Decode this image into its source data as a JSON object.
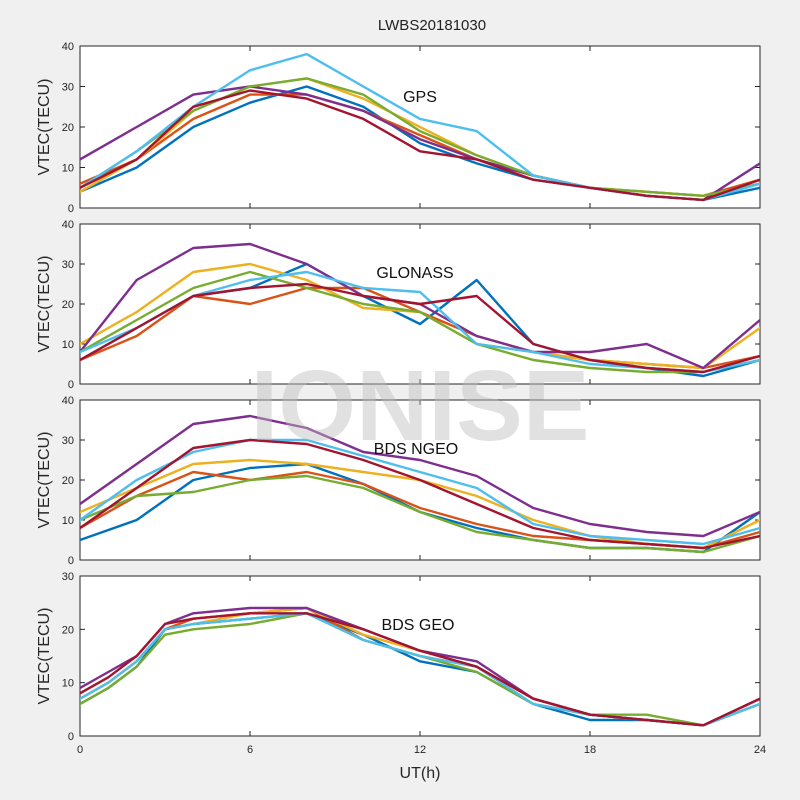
{
  "figure_title": "LWBS20181030",
  "watermark": "IONISE",
  "x_label": "UT(h)",
  "colors": [
    "#0072BD",
    "#D95319",
    "#EDB120",
    "#7E2F8E",
    "#77AC30",
    "#4DBEEE",
    "#A2142F"
  ],
  "chart_data": [
    {
      "type": "line",
      "label": "GPS",
      "ylabel": "VTEC(TECU)",
      "xlim": [
        0,
        24
      ],
      "ylim": [
        0,
        40
      ],
      "xticks": [
        0,
        6,
        12,
        18,
        24
      ],
      "yticks": [
        0,
        10,
        20,
        30,
        40
      ],
      "series": [
        {
          "x": [
            0,
            2,
            4,
            6,
            8,
            10,
            12,
            14,
            16,
            18,
            20,
            22,
            24
          ],
          "y": [
            4,
            10,
            20,
            26,
            30,
            25,
            16,
            11,
            7,
            5,
            3,
            2,
            5
          ]
        },
        {
          "x": [
            0,
            2,
            4,
            6,
            8,
            10,
            12,
            14,
            16,
            18,
            20,
            22,
            24
          ],
          "y": [
            6,
            12,
            22,
            28,
            28,
            24,
            18,
            12,
            8,
            5,
            4,
            3,
            7
          ]
        },
        {
          "x": [
            0,
            2,
            4,
            6,
            8,
            10,
            12,
            14,
            16,
            18,
            20,
            22,
            24
          ],
          "y": [
            4,
            12,
            24,
            30,
            32,
            27,
            20,
            13,
            8,
            5,
            4,
            3,
            6
          ]
        },
        {
          "x": [
            0,
            2,
            4,
            6,
            8,
            10,
            12,
            14,
            16,
            18,
            20,
            22,
            24
          ],
          "y": [
            12,
            20,
            28,
            30,
            28,
            24,
            17,
            12,
            8,
            5,
            3,
            2,
            11
          ]
        },
        {
          "x": [
            0,
            2,
            4,
            6,
            8,
            10,
            12,
            14,
            16,
            18,
            20,
            22,
            24
          ],
          "y": [
            5,
            14,
            24,
            30,
            32,
            28,
            19,
            13,
            8,
            5,
            4,
            3,
            6
          ]
        },
        {
          "x": [
            0,
            2,
            4,
            6,
            8,
            10,
            12,
            14,
            16,
            18,
            20,
            22,
            24
          ],
          "y": [
            5,
            14,
            25,
            34,
            38,
            30,
            22,
            19,
            8,
            5,
            3,
            2,
            6
          ]
        },
        {
          "x": [
            0,
            2,
            4,
            6,
            8,
            10,
            12,
            14,
            16,
            18,
            20,
            22,
            24
          ],
          "y": [
            5,
            12,
            25,
            29,
            27,
            22,
            14,
            12,
            7,
            5,
            3,
            2,
            7
          ]
        }
      ]
    },
    {
      "type": "line",
      "label": "GLONASS",
      "ylabel": "VTEC(TECU)",
      "xlim": [
        0,
        24
      ],
      "ylim": [
        0,
        40
      ],
      "xticks": [
        0,
        6,
        12,
        18,
        24
      ],
      "yticks": [
        0,
        10,
        20,
        30,
        40
      ],
      "series": [
        {
          "x": [
            0,
            2,
            4,
            6,
            8,
            10,
            12,
            14,
            16,
            18,
            20,
            22,
            24
          ],
          "y": [
            6,
            14,
            22,
            24,
            30,
            22,
            15,
            26,
            10,
            6,
            4,
            2,
            6
          ]
        },
        {
          "x": [
            0,
            2,
            4,
            6,
            8,
            10,
            12,
            14,
            16,
            18,
            20,
            22,
            24
          ],
          "y": [
            6,
            12,
            22,
            20,
            24,
            24,
            18,
            12,
            8,
            6,
            5,
            4,
            7
          ]
        },
        {
          "x": [
            0,
            2,
            4,
            6,
            8,
            10,
            12,
            14,
            16,
            18,
            20,
            22,
            24
          ],
          "y": [
            10,
            18,
            28,
            30,
            26,
            19,
            18,
            10,
            8,
            6,
            5,
            4,
            14
          ]
        },
        {
          "x": [
            0,
            2,
            4,
            6,
            8,
            10,
            12,
            14,
            16,
            18,
            20,
            22,
            24
          ],
          "y": [
            8,
            26,
            34,
            35,
            30,
            22,
            20,
            12,
            8,
            8,
            10,
            4,
            16
          ]
        },
        {
          "x": [
            0,
            2,
            4,
            6,
            8,
            10,
            12,
            14,
            16,
            18,
            20,
            22,
            24
          ],
          "y": [
            8,
            16,
            24,
            28,
            24,
            20,
            18,
            10,
            6,
            4,
            3,
            3,
            6
          ]
        },
        {
          "x": [
            0,
            2,
            4,
            6,
            8,
            10,
            12,
            14,
            16,
            18,
            20,
            22,
            24
          ],
          "y": [
            8,
            14,
            22,
            26,
            28,
            24,
            23,
            10,
            8,
            5,
            4,
            3,
            6
          ]
        },
        {
          "x": [
            0,
            2,
            4,
            6,
            8,
            10,
            12,
            14,
            16,
            18,
            20,
            22,
            24
          ],
          "y": [
            6,
            14,
            22,
            24,
            25,
            22,
            20,
            22,
            10,
            6,
            4,
            3,
            7
          ]
        }
      ]
    },
    {
      "type": "line",
      "label": "BDS NGEO",
      "ylabel": "VTEC(TECU)",
      "xlim": [
        0,
        24
      ],
      "ylim": [
        0,
        40
      ],
      "xticks": [
        0,
        6,
        12,
        18,
        24
      ],
      "yticks": [
        0,
        10,
        20,
        30,
        40
      ],
      "series": [
        {
          "x": [
            0,
            2,
            4,
            6,
            8,
            10,
            12,
            14,
            16,
            18,
            20,
            22,
            24
          ],
          "y": [
            5,
            10,
            20,
            23,
            24,
            19,
            12,
            8,
            5,
            3,
            3,
            2,
            12
          ]
        },
        {
          "x": [
            0,
            2,
            4,
            6,
            8,
            10,
            12,
            14,
            16,
            18,
            20,
            22,
            24
          ],
          "y": [
            8,
            16,
            22,
            20,
            22,
            19,
            13,
            9,
            6,
            5,
            4,
            3,
            7
          ]
        },
        {
          "x": [
            0,
            2,
            4,
            6,
            8,
            10,
            12,
            14,
            16,
            18,
            20,
            22,
            24
          ],
          "y": [
            12,
            18,
            24,
            25,
            24,
            22,
            20,
            16,
            10,
            6,
            4,
            3,
            10
          ]
        },
        {
          "x": [
            0,
            2,
            4,
            6,
            8,
            10,
            12,
            14,
            16,
            18,
            20,
            22,
            24
          ],
          "y": [
            14,
            24,
            34,
            36,
            33,
            27,
            25,
            21,
            13,
            9,
            7,
            6,
            12
          ]
        },
        {
          "x": [
            0,
            2,
            4,
            6,
            8,
            10,
            12,
            14,
            16,
            18,
            20,
            22,
            24
          ],
          "y": [
            10,
            16,
            17,
            20,
            21,
            18,
            12,
            7,
            5,
            3,
            3,
            2,
            6
          ]
        },
        {
          "x": [
            0,
            2,
            4,
            6,
            8,
            10,
            12,
            14,
            16,
            18,
            20,
            22,
            24
          ],
          "y": [
            10,
            20,
            27,
            30,
            30,
            26,
            22,
            18,
            9,
            6,
            5,
            4,
            8
          ]
        },
        {
          "x": [
            0,
            2,
            4,
            6,
            8,
            10,
            12,
            14,
            16,
            18,
            20,
            22,
            24
          ],
          "y": [
            8,
            18,
            28,
            30,
            29,
            25,
            20,
            14,
            8,
            5,
            4,
            3,
            6
          ]
        }
      ]
    },
    {
      "type": "line",
      "label": "BDS GEO",
      "ylabel": "VTEC(TECU)",
      "xlim": [
        0,
        24
      ],
      "ylim": [
        0,
        30
      ],
      "xticks": [
        0,
        6,
        12,
        18,
        24
      ],
      "yticks": [
        0,
        10,
        20,
        30
      ],
      "series": [
        {
          "x": [
            0,
            1,
            2,
            3,
            4,
            6,
            8,
            10,
            12,
            14,
            16,
            18,
            20,
            22,
            24
          ],
          "y": [
            6,
            9,
            13,
            20,
            21,
            22,
            23,
            19,
            14,
            12,
            6,
            3,
            3,
            2,
            6
          ]
        },
        {
          "x": [
            0,
            1,
            2,
            3,
            4,
            6,
            8,
            10,
            12,
            14,
            16,
            18,
            20,
            22,
            24
          ],
          "y": [
            7,
            10,
            14,
            20,
            22,
            23,
            24,
            18,
            15,
            13,
            7,
            4,
            3,
            2,
            7
          ]
        },
        {
          "x": [
            0,
            1,
            2,
            3,
            4,
            6,
            8,
            10,
            12,
            14,
            16,
            18,
            20,
            22,
            24
          ],
          "y": [
            7,
            10,
            14,
            20,
            21,
            23,
            24,
            19,
            16,
            13,
            6,
            4,
            3,
            2,
            6
          ]
        },
        {
          "x": [
            0,
            1,
            2,
            3,
            4,
            6,
            8,
            10,
            12,
            14,
            16,
            18,
            20,
            22,
            24
          ],
          "y": [
            9,
            12,
            15,
            21,
            23,
            24,
            24,
            20,
            16,
            14,
            7,
            4,
            3,
            2,
            7
          ]
        },
        {
          "x": [
            0,
            1,
            2,
            3,
            4,
            6,
            8,
            10,
            12,
            14,
            16,
            18,
            20,
            22,
            24
          ],
          "y": [
            6,
            9,
            13,
            19,
            20,
            21,
            23,
            18,
            15,
            12,
            6,
            4,
            4,
            2,
            6
          ]
        },
        {
          "x": [
            0,
            1,
            2,
            3,
            4,
            6,
            8,
            10,
            12,
            14,
            16,
            18,
            20,
            22,
            24
          ],
          "y": [
            7,
            10,
            14,
            20,
            21,
            22,
            23,
            18,
            15,
            13,
            6,
            4,
            3,
            2,
            6
          ]
        },
        {
          "x": [
            0,
            1,
            2,
            3,
            4,
            6,
            8,
            10,
            12,
            14,
            16,
            18,
            20,
            22,
            24
          ],
          "y": [
            8,
            11,
            15,
            21,
            22,
            23,
            23,
            20,
            16,
            13,
            7,
            4,
            3,
            2,
            7
          ]
        }
      ]
    }
  ]
}
